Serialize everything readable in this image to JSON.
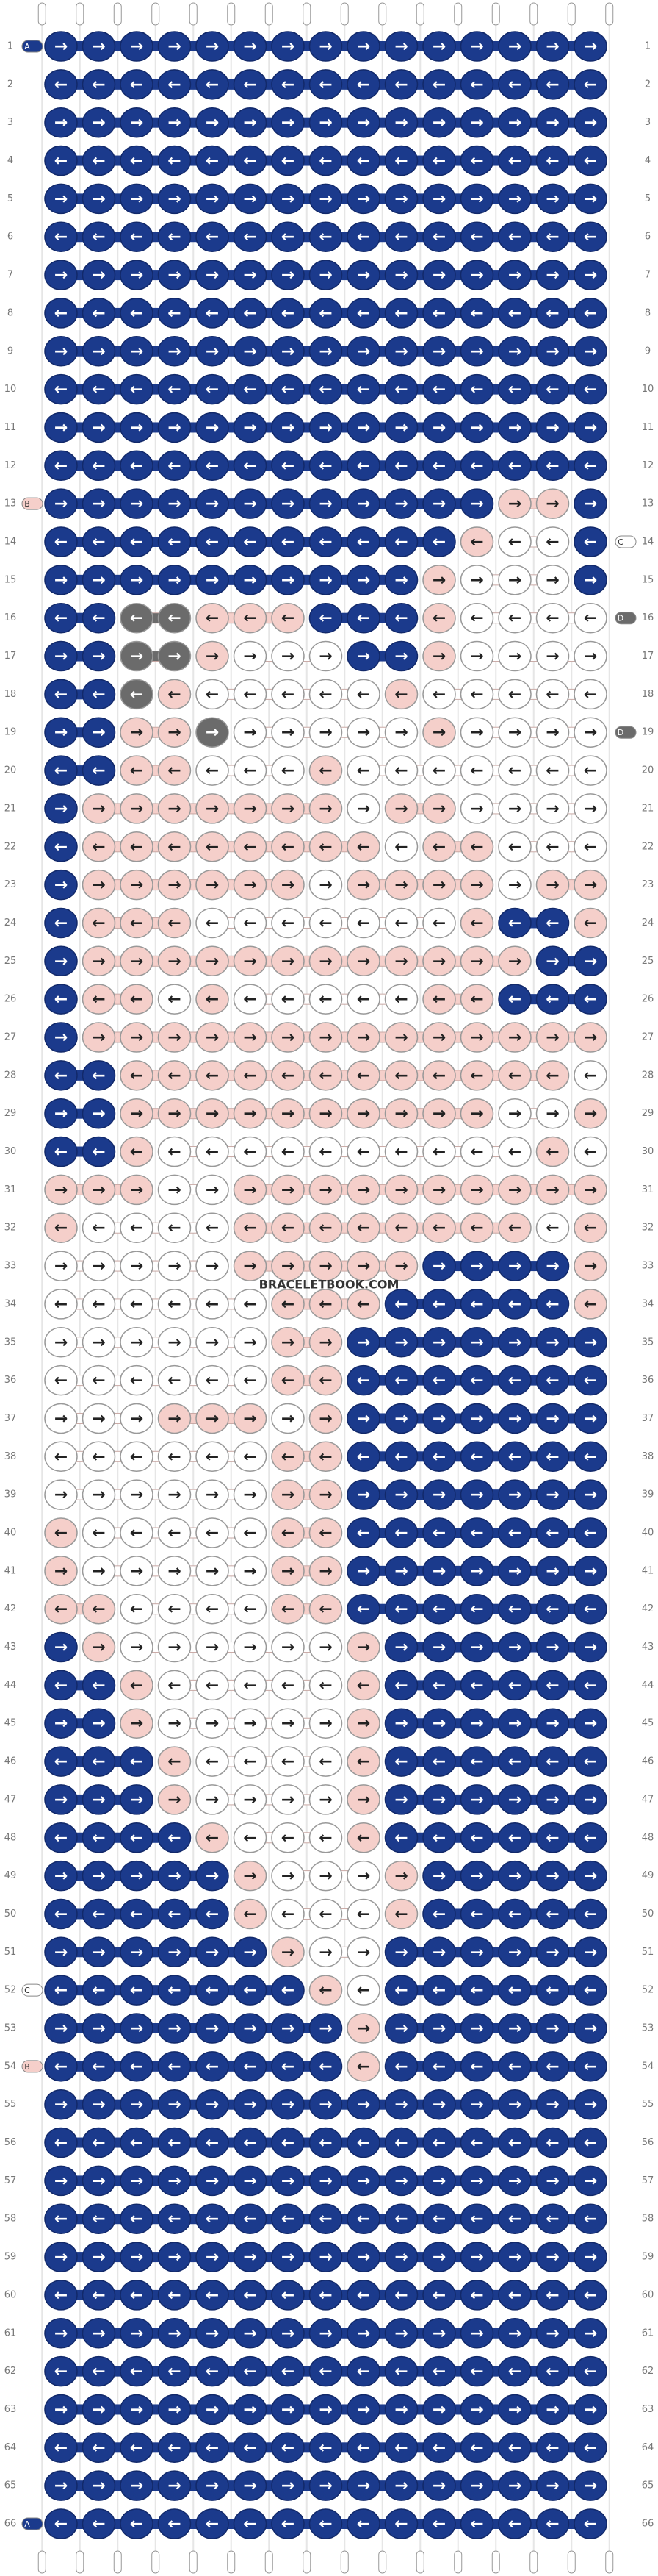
{
  "watermark": "BRACELETBOOK.COM",
  "palette": {
    "b": "#1b3a8c",
    "p": "#f5cfca",
    "w": "#ffffff",
    "g": "#6b6b6b"
  },
  "arrows": {
    "right": "→",
    "left": "←"
  },
  "markers": [
    {
      "row": 1,
      "side": "left",
      "letter": "A",
      "color": "b"
    },
    {
      "row": 13,
      "side": "left",
      "letter": "B",
      "color": "p"
    },
    {
      "row": 52,
      "side": "left",
      "letter": "C",
      "color": "w"
    },
    {
      "row": 54,
      "side": "left",
      "letter": "B",
      "color": "p"
    },
    {
      "row": 66,
      "side": "left",
      "letter": "A",
      "color": "b"
    },
    {
      "row": 14,
      "side": "right",
      "letter": "C",
      "color": "w"
    },
    {
      "row": 16,
      "side": "right",
      "letter": "D",
      "color": "g"
    },
    {
      "row": 19,
      "side": "right",
      "letter": "D",
      "color": "g"
    }
  ],
  "rows": [
    {
      "label": 1,
      "knots": "bbbbbbbbbbbbbbb"
    },
    {
      "label": 2,
      "knots": "bbbbbbbbbbbbbbb"
    },
    {
      "label": 3,
      "knots": "bbbbbbbbbbbbbbb"
    },
    {
      "label": 4,
      "knots": "bbbbbbbbbbbbbbb"
    },
    {
      "label": 5,
      "knots": "bbbbbbbbbbbbbbb"
    },
    {
      "label": 6,
      "knots": "bbbbbbbbbbbbbbb"
    },
    {
      "label": 7,
      "knots": "bbbbbbbbbbbbbbb"
    },
    {
      "label": 8,
      "knots": "bbbbbbbbbbbbbbb"
    },
    {
      "label": 9,
      "knots": "bbbbbbbbbbbbbbb"
    },
    {
      "label": 10,
      "knots": "bbbbbbbbbbbbbbb"
    },
    {
      "label": 11,
      "knots": "bbbbbbbbbbbbbbb"
    },
    {
      "label": 12,
      "knots": "bbbbbbbbbbbbbbb"
    },
    {
      "label": 13,
      "knots": "bbbbbbbbbbbbppb"
    },
    {
      "label": 14,
      "knots": "bbbbbbbbbbbpwwb"
    },
    {
      "label": 15,
      "knots": "bbbbbbbbbbpwwwb"
    },
    {
      "label": 16,
      "knots": "bbggpppbbbpwwww"
    },
    {
      "label": 17,
      "knots": "bbggpwwwbbpwwww"
    },
    {
      "label": 18,
      "knots": "bbgpwwwwwpwwwww"
    },
    {
      "label": 19,
      "knots": "bbppgwwwwwpwwww"
    },
    {
      "label": 20,
      "knots": "bbppwwwpwwwwwww"
    },
    {
      "label": 21,
      "knots": "bpppppppwppwwww"
    },
    {
      "label": 22,
      "knots": "bppppppppwppwww"
    },
    {
      "label": 23,
      "knots": "bppppppwppppwpp"
    },
    {
      "label": 24,
      "knots": "bpppwwwwwwwpbbp"
    },
    {
      "label": 25,
      "knots": "bppppppppppppbb"
    },
    {
      "label": 26,
      "knots": "bppwpwwwwwppbbb"
    },
    {
      "label": 27,
      "knots": "bpppppppppppppp"
    },
    {
      "label": 28,
      "knots": "bbppppppppppppw"
    },
    {
      "label": 29,
      "knots": "bbppppppppppwwp"
    },
    {
      "label": 30,
      "knots": "bbpwwwwwwwwwwpw"
    },
    {
      "label": 31,
      "knots": "pppwwpppppppppp"
    },
    {
      "label": 32,
      "knots": "pwwwwppppppppwp"
    },
    {
      "label": 33,
      "knots": "wwwwwpppppbbbbp"
    },
    {
      "label": 34,
      "knots": "wwwwwwpppbbbbbp"
    },
    {
      "label": 35,
      "knots": "wwwwwwppbbbbbbb"
    },
    {
      "label": 36,
      "knots": "wwwwwwppbbbbbbb"
    },
    {
      "label": 37,
      "knots": "wwwpppwpbbbbbbb"
    },
    {
      "label": 38,
      "knots": "wwwwwwppbbbbbbb"
    },
    {
      "label": 39,
      "knots": "wwwwwwppbbbbbbb"
    },
    {
      "label": 40,
      "knots": "pwwwwwppbbbbbbb"
    },
    {
      "label": 41,
      "knots": "pwwwwwppbbbbbbb"
    },
    {
      "label": 42,
      "knots": "ppwwwwppbbbbbbb"
    },
    {
      "label": 43,
      "knots": "bpwwwwwwpbbbbbb"
    },
    {
      "label": 44,
      "knots": "bbpwwwwwpbbbbbb"
    },
    {
      "label": 45,
      "knots": "bbpwwwwwpbbbbbb"
    },
    {
      "label": 46,
      "knots": "bbbpwwwwpbbbbbb"
    },
    {
      "label": 47,
      "knots": "bbbpwwwwpbbbbbb"
    },
    {
      "label": 48,
      "knots": "bbbbpwwwpbbbbbb"
    },
    {
      "label": 49,
      "knots": "bbbbbpwwwpbbbbb"
    },
    {
      "label": 50,
      "knots": "bbbbbpwwwpbbbbb"
    },
    {
      "label": 51,
      "knots": "bbbbbbpwwbbbbbb"
    },
    {
      "label": 52,
      "knots": "bbbbbbbpwbbbbbb"
    },
    {
      "label": 53,
      "knots": "bbbbbbbbpbbbbbb"
    },
    {
      "label": 54,
      "knots": "bbbbbbbbpbbbbbb"
    },
    {
      "label": 55,
      "knots": "bbbbbbbbbbbbbbb"
    },
    {
      "label": 56,
      "knots": "bbbbbbbbbbbbbbb"
    },
    {
      "label": 57,
      "knots": "bbbbbbbbbbbbbbb"
    },
    {
      "label": 58,
      "knots": "bbbbbbbbbbbbbbb"
    },
    {
      "label": 59,
      "knots": "bbbbbbbbbbbbbbb"
    },
    {
      "label": 60,
      "knots": "bbbbbbbbbbbbbbb"
    },
    {
      "label": 61,
      "knots": "bbbbbbbbbbbbbbb"
    },
    {
      "label": 62,
      "knots": "bbbbbbbbbbbbbbb"
    },
    {
      "label": 63,
      "knots": "bbbbbbbbbbbbbbb"
    },
    {
      "label": 64,
      "knots": "bbbbbbbbbbbbbbb"
    },
    {
      "label": 65,
      "knots": "bbbbbbbbbbbbbbb"
    },
    {
      "label": 66,
      "knots": "bbbbbbbbbbbbbbb"
    }
  ]
}
